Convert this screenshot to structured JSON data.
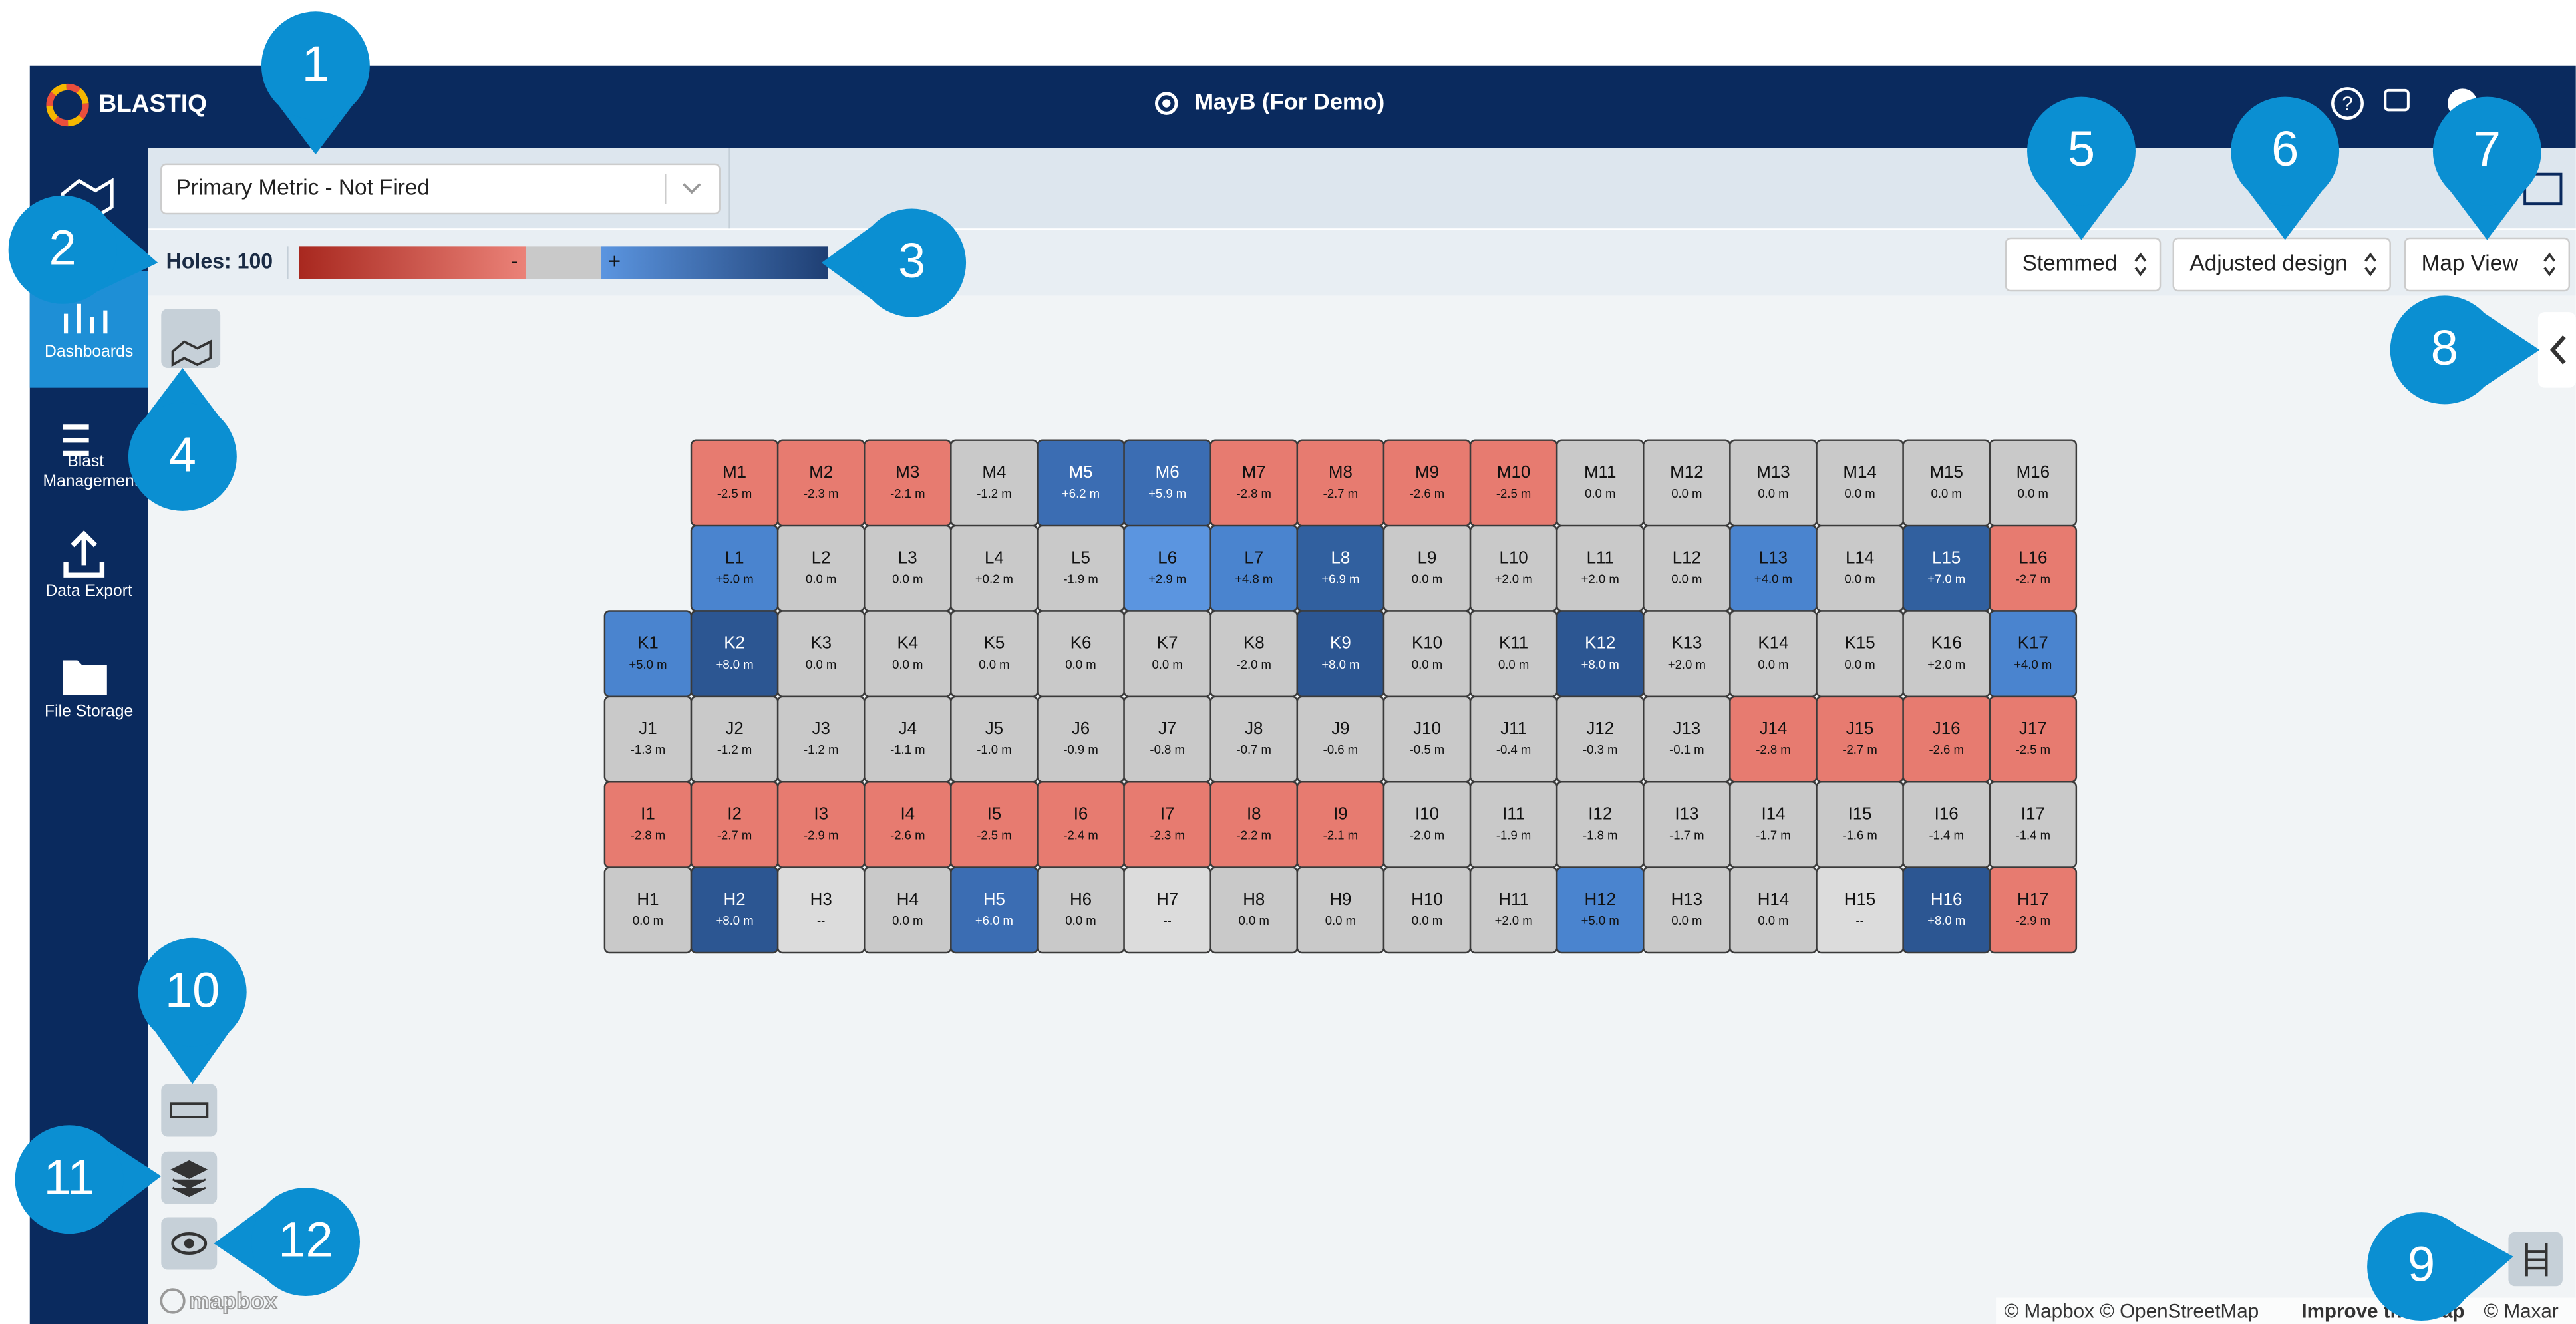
{
  "header": {
    "logo": "BLASTIQ",
    "site": "MayB (For Demo)"
  },
  "sidebar": {
    "items": [
      "Dashboards",
      "Blast Management",
      "Data Export",
      "File Storage"
    ]
  },
  "toolbar": {
    "metric": "Primary Metric - Not Fired",
    "holes": "Holes: 100",
    "minus": "-",
    "plus": "+",
    "dropdowns": [
      "Stemmed",
      "Adjusted design",
      "Map View"
    ]
  },
  "map": {
    "rows": [
      {
        "holes": [
          {
            "id": "M1",
            "value": "-2.5 m",
            "color": "#e77b70"
          },
          {
            "id": "M2",
            "value": "-2.3 m",
            "color": "#e77b70"
          },
          {
            "id": "M3",
            "value": "-2.1 m",
            "color": "#e77b70"
          },
          {
            "id": "M4",
            "value": "-1.2 m",
            "color": "#c9c9c9"
          },
          {
            "id": "M5",
            "value": "+6.2 m",
            "color": "#3b6db3"
          },
          {
            "id": "M6",
            "value": "+5.9 m",
            "color": "#3b6db3"
          },
          {
            "id": "M7",
            "value": "-2.8 m",
            "color": "#e77b70"
          },
          {
            "id": "M8",
            "value": "-2.7 m",
            "color": "#e77b70"
          },
          {
            "id": "M9",
            "value": "-2.6 m",
            "color": "#e77b70"
          },
          {
            "id": "M10",
            "value": "-2.5 m",
            "color": "#e77b70"
          },
          {
            "id": "M11",
            "value": "0.0 m",
            "color": "#c9c9c9"
          },
          {
            "id": "M12",
            "value": "0.0 m",
            "color": "#c9c9c9"
          },
          {
            "id": "M13",
            "value": "0.0 m",
            "color": "#c9c9c9"
          },
          {
            "id": "M14",
            "value": "0.0 m",
            "color": "#c9c9c9"
          },
          {
            "id": "M15",
            "value": "0.0 m",
            "color": "#c9c9c9"
          },
          {
            "id": "M16",
            "value": "0.0 m",
            "color": "#c9c9c9"
          }
        ]
      },
      {
        "holes": [
          {
            "id": "L1",
            "value": "+5.0 m",
            "color": "#4a84cf"
          },
          {
            "id": "L2",
            "value": "0.0 m",
            "color": "#c9c9c9"
          },
          {
            "id": "L3",
            "value": "0.0 m",
            "color": "#c9c9c9"
          },
          {
            "id": "L4",
            "value": "+0.2 m",
            "color": "#c9c9c9"
          },
          {
            "id": "L5",
            "value": "-1.9 m",
            "color": "#c9c9c9"
          },
          {
            "id": "L6",
            "value": "+2.9 m",
            "color": "#5b95e0"
          },
          {
            "id": "L7",
            "value": "+4.8 m",
            "color": "#4a84cf"
          },
          {
            "id": "L8",
            "value": "+6.9 m",
            "color": "#31609f"
          },
          {
            "id": "L9",
            "value": "0.0 m",
            "color": "#c9c9c9"
          },
          {
            "id": "L10",
            "value": "+2.0 m",
            "color": "#c9c9c9"
          },
          {
            "id": "L11",
            "value": "+2.0 m",
            "color": "#c9c9c9"
          },
          {
            "id": "L12",
            "value": "0.0 m",
            "color": "#c9c9c9"
          },
          {
            "id": "L13",
            "value": "+4.0 m",
            "color": "#4a84cf"
          },
          {
            "id": "L14",
            "value": "0.0 m",
            "color": "#c9c9c9"
          },
          {
            "id": "L15",
            "value": "+7.0 m",
            "color": "#31609f"
          },
          {
            "id": "L16",
            "value": "-2.7 m",
            "color": "#e77b70"
          }
        ]
      },
      {
        "holes": [
          {
            "id": "K1",
            "value": "+5.0 m",
            "color": "#4a84cf"
          },
          {
            "id": "K2",
            "value": "+8.0 m",
            "color": "#2c5692"
          },
          {
            "id": "K3",
            "value": "0.0 m",
            "color": "#c9c9c9"
          },
          {
            "id": "K4",
            "value": "0.0 m",
            "color": "#c9c9c9"
          },
          {
            "id": "K5",
            "value": "0.0 m",
            "color": "#c9c9c9"
          },
          {
            "id": "K6",
            "value": "0.0 m",
            "color": "#c9c9c9"
          },
          {
            "id": "K7",
            "value": "0.0 m",
            "color": "#c9c9c9"
          },
          {
            "id": "K8",
            "value": "-2.0 m",
            "color": "#c9c9c9"
          },
          {
            "id": "K9",
            "value": "+8.0 m",
            "color": "#2c5692"
          },
          {
            "id": "K10",
            "value": "0.0 m",
            "color": "#c9c9c9"
          },
          {
            "id": "K11",
            "value": "0.0 m",
            "color": "#c9c9c9"
          },
          {
            "id": "K12",
            "value": "+8.0 m",
            "color": "#2c5692"
          },
          {
            "id": "K13",
            "value": "+2.0 m",
            "color": "#c9c9c9"
          },
          {
            "id": "K14",
            "value": "0.0 m",
            "color": "#c9c9c9"
          },
          {
            "id": "K15",
            "value": "0.0 m",
            "color": "#c9c9c9"
          },
          {
            "id": "K16",
            "value": "+2.0 m",
            "color": "#c9c9c9"
          },
          {
            "id": "K17",
            "value": "+4.0 m",
            "color": "#4a84cf"
          }
        ]
      },
      {
        "holes": [
          {
            "id": "J1",
            "value": "-1.3 m",
            "color": "#c9c9c9"
          },
          {
            "id": "J2",
            "value": "-1.2 m",
            "color": "#c9c9c9"
          },
          {
            "id": "J3",
            "value": "-1.2 m",
            "color": "#c9c9c9"
          },
          {
            "id": "J4",
            "value": "-1.1 m",
            "color": "#c9c9c9"
          },
          {
            "id": "J5",
            "value": "-1.0 m",
            "color": "#c9c9c9"
          },
          {
            "id": "J6",
            "value": "-0.9 m",
            "color": "#c9c9c9"
          },
          {
            "id": "J7",
            "value": "-0.8 m",
            "color": "#c9c9c9"
          },
          {
            "id": "J8",
            "value": "-0.7 m",
            "color": "#c9c9c9"
          },
          {
            "id": "J9",
            "value": "-0.6 m",
            "color": "#c9c9c9"
          },
          {
            "id": "J10",
            "value": "-0.5 m",
            "color": "#c9c9c9"
          },
          {
            "id": "J11",
            "value": "-0.4 m",
            "color": "#c9c9c9"
          },
          {
            "id": "J12",
            "value": "-0.3 m",
            "color": "#c9c9c9"
          },
          {
            "id": "J13",
            "value": "-0.1 m",
            "color": "#c9c9c9"
          },
          {
            "id": "J14",
            "value": "-2.8 m",
            "color": "#e77b70"
          },
          {
            "id": "J15",
            "value": "-2.7 m",
            "color": "#e77b70"
          },
          {
            "id": "J16",
            "value": "-2.6 m",
            "color": "#e77b70"
          },
          {
            "id": "J17",
            "value": "-2.5 m",
            "color": "#e77b70"
          }
        ]
      },
      {
        "holes": [
          {
            "id": "I1",
            "value": "-2.8 m",
            "color": "#e77b70"
          },
          {
            "id": "I2",
            "value": "-2.7 m",
            "color": "#e77b70"
          },
          {
            "id": "I3",
            "value": "-2.9 m",
            "color": "#e77b70"
          },
          {
            "id": "I4",
            "value": "-2.6 m",
            "color": "#e77b70"
          },
          {
            "id": "I5",
            "value": "-2.5 m",
            "color": "#e77b70"
          },
          {
            "id": "I6",
            "value": "-2.4 m",
            "color": "#e77b70"
          },
          {
            "id": "I7",
            "value": "-2.3 m",
            "color": "#e77b70"
          },
          {
            "id": "I8",
            "value": "-2.2 m",
            "color": "#e77b70"
          },
          {
            "id": "I9",
            "value": "-2.1 m",
            "color": "#e77b70"
          },
          {
            "id": "I10",
            "value": "-2.0 m",
            "color": "#c9c9c9"
          },
          {
            "id": "I11",
            "value": "-1.9 m",
            "color": "#c9c9c9"
          },
          {
            "id": "I12",
            "value": "-1.8 m",
            "color": "#c9c9c9"
          },
          {
            "id": "I13",
            "value": "-1.7 m",
            "color": "#c9c9c9"
          },
          {
            "id": "I14",
            "value": "-1.7 m",
            "color": "#c9c9c9"
          },
          {
            "id": "I15",
            "value": "-1.6 m",
            "color": "#c9c9c9"
          },
          {
            "id": "I16",
            "value": "-1.4 m",
            "color": "#c9c9c9"
          },
          {
            "id": "I17",
            "value": "-1.4 m",
            "color": "#c9c9c9"
          }
        ]
      },
      {
        "holes": [
          {
            "id": "H1",
            "value": "0.0 m",
            "color": "#c9c9c9"
          },
          {
            "id": "H2",
            "value": "+8.0 m",
            "color": "#2c5692"
          },
          {
            "id": "H3",
            "value": "--",
            "color": "#dcdcdc"
          },
          {
            "id": "H4",
            "value": "0.0 m",
            "color": "#c9c9c9"
          },
          {
            "id": "H5",
            "value": "+6.0 m",
            "color": "#3b6db3"
          },
          {
            "id": "H6",
            "value": "0.0 m",
            "color": "#c9c9c9"
          },
          {
            "id": "H7",
            "value": "--",
            "color": "#dcdcdc"
          },
          {
            "id": "H8",
            "value": "0.0 m",
            "color": "#c9c9c9"
          },
          {
            "id": "H9",
            "value": "0.0 m",
            "color": "#c9c9c9"
          },
          {
            "id": "H10",
            "value": "0.0 m",
            "color": "#c9c9c9"
          },
          {
            "id": "H11",
            "value": "+2.0 m",
            "color": "#c9c9c9"
          },
          {
            "id": "H12",
            "value": "+5.0 m",
            "color": "#4a84cf"
          },
          {
            "id": "H13",
            "value": "0.0 m",
            "color": "#c9c9c9"
          },
          {
            "id": "H14",
            "value": "0.0 m",
            "color": "#c9c9c9"
          },
          {
            "id": "H15",
            "value": "--",
            "color": "#dcdcdc"
          },
          {
            "id": "H16",
            "value": "+8.0 m",
            "color": "#2c5692"
          },
          {
            "id": "H17",
            "value": "-2.9 m",
            "color": "#e77b70"
          }
        ]
      }
    ]
  },
  "footer": {
    "mapbox": "mapbox",
    "copyright": "© Mapbox © OpenStreetMap",
    "improve": "Improve this map",
    "maxar": "© Maxar"
  },
  "callouts": [
    "1",
    "2",
    "3",
    "4",
    "5",
    "6",
    "7",
    "8",
    "9",
    "10",
    "11",
    "12"
  ]
}
